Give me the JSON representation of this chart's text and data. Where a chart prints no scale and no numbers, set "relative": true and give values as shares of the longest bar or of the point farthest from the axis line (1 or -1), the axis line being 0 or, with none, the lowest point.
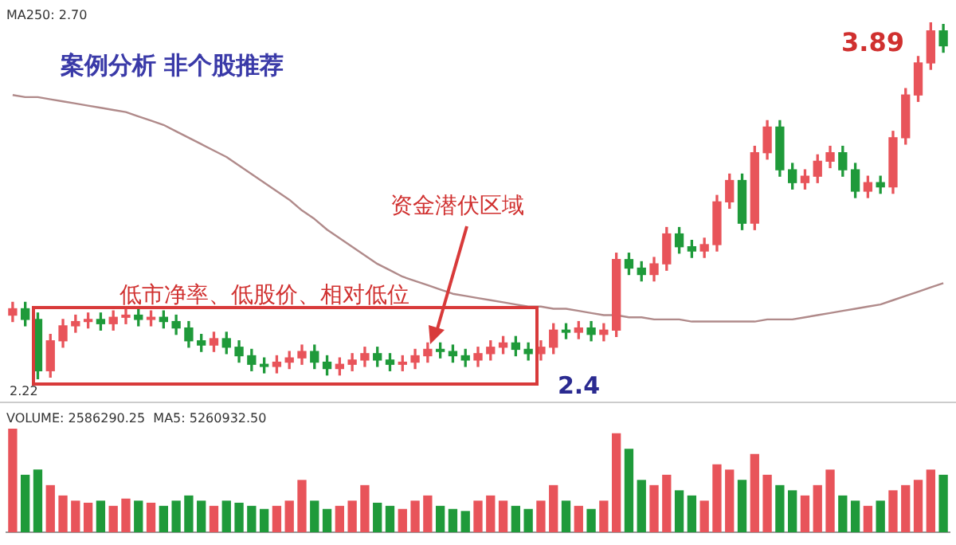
{
  "chart_data": [
    {
      "type": "candlestick",
      "categories": [
        null,
        null,
        null,
        null,
        null,
        null,
        null,
        null,
        null,
        null,
        null,
        null,
        null,
        null,
        null,
        null,
        null,
        null,
        null,
        null,
        null,
        null,
        null,
        null,
        null,
        null,
        null,
        null,
        null,
        null,
        null,
        null,
        null,
        null,
        null,
        null,
        null,
        null,
        null,
        null,
        null,
        null,
        null,
        null,
        null,
        null,
        null,
        null,
        null,
        null,
        null,
        null,
        null,
        null,
        null,
        null,
        null,
        null,
        null,
        null,
        null,
        null,
        null,
        null,
        null,
        null,
        null,
        null,
        null,
        null,
        null,
        null,
        null,
        null,
        null
      ],
      "ohlc": [
        [
          2.52,
          2.58,
          2.49,
          2.55
        ],
        [
          2.55,
          2.58,
          2.47,
          2.5
        ],
        [
          2.5,
          2.53,
          2.22,
          2.26
        ],
        [
          2.26,
          2.43,
          2.23,
          2.4
        ],
        [
          2.4,
          2.5,
          2.37,
          2.47
        ],
        [
          2.47,
          2.52,
          2.44,
          2.49
        ],
        [
          2.49,
          2.53,
          2.46,
          2.5
        ],
        [
          2.5,
          2.53,
          2.45,
          2.48
        ],
        [
          2.48,
          2.54,
          2.45,
          2.51
        ],
        [
          2.51,
          2.55,
          2.48,
          2.52
        ],
        [
          2.52,
          2.55,
          2.47,
          2.5
        ],
        [
          2.5,
          2.54,
          2.47,
          2.51
        ],
        [
          2.51,
          2.54,
          2.46,
          2.49
        ],
        [
          2.49,
          2.52,
          2.43,
          2.46
        ],
        [
          2.46,
          2.49,
          2.37,
          2.4
        ],
        [
          2.4,
          2.43,
          2.35,
          2.38
        ],
        [
          2.38,
          2.44,
          2.35,
          2.41
        ],
        [
          2.41,
          2.44,
          2.34,
          2.37
        ],
        [
          2.37,
          2.4,
          2.3,
          2.33
        ],
        [
          2.33,
          2.36,
          2.26,
          2.29
        ],
        [
          2.29,
          2.32,
          2.25,
          2.28
        ],
        [
          2.28,
          2.33,
          2.25,
          2.3
        ],
        [
          2.3,
          2.35,
          2.27,
          2.32
        ],
        [
          2.32,
          2.38,
          2.29,
          2.35
        ],
        [
          2.35,
          2.38,
          2.27,
          2.3
        ],
        [
          2.3,
          2.33,
          2.24,
          2.27
        ],
        [
          2.27,
          2.32,
          2.24,
          2.29
        ],
        [
          2.29,
          2.34,
          2.26,
          2.31
        ],
        [
          2.31,
          2.37,
          2.28,
          2.34
        ],
        [
          2.34,
          2.37,
          2.28,
          2.31
        ],
        [
          2.31,
          2.34,
          2.26,
          2.29
        ],
        [
          2.29,
          2.33,
          2.26,
          2.3
        ],
        [
          2.3,
          2.36,
          2.27,
          2.33
        ],
        [
          2.33,
          2.39,
          2.3,
          2.36
        ],
        [
          2.36,
          2.39,
          2.32,
          2.35
        ],
        [
          2.35,
          2.38,
          2.3,
          2.33
        ],
        [
          2.33,
          2.36,
          2.28,
          2.31
        ],
        [
          2.31,
          2.37,
          2.28,
          2.34
        ],
        [
          2.34,
          2.4,
          2.31,
          2.37
        ],
        [
          2.37,
          2.42,
          2.34,
          2.39
        ],
        [
          2.39,
          2.42,
          2.33,
          2.36
        ],
        [
          2.36,
          2.39,
          2.31,
          2.34
        ],
        [
          2.34,
          2.4,
          2.31,
          2.37
        ],
        [
          2.37,
          2.48,
          2.34,
          2.45
        ],
        [
          2.45,
          2.48,
          2.41,
          2.44
        ],
        [
          2.44,
          2.49,
          2.41,
          2.46
        ],
        [
          2.46,
          2.49,
          2.4,
          2.43
        ],
        [
          2.43,
          2.48,
          2.4,
          2.45
        ],
        [
          2.45,
          2.81,
          2.42,
          2.78
        ],
        [
          2.78,
          2.81,
          2.71,
          2.74
        ],
        [
          2.74,
          2.77,
          2.68,
          2.71
        ],
        [
          2.71,
          2.79,
          2.68,
          2.76
        ],
        [
          2.76,
          2.93,
          2.73,
          2.9
        ],
        [
          2.9,
          2.93,
          2.81,
          2.84
        ],
        [
          2.84,
          2.87,
          2.79,
          2.82
        ],
        [
          2.82,
          2.88,
          2.79,
          2.85
        ],
        [
          2.85,
          3.08,
          2.82,
          3.05
        ],
        [
          3.05,
          3.18,
          3.02,
          3.15
        ],
        [
          3.15,
          3.18,
          2.92,
          2.95
        ],
        [
          2.95,
          3.31,
          2.92,
          3.28
        ],
        [
          3.28,
          3.43,
          3.25,
          3.4
        ],
        [
          3.4,
          3.43,
          3.17,
          3.2
        ],
        [
          3.2,
          3.23,
          3.11,
          3.14
        ],
        [
          3.14,
          3.2,
          3.11,
          3.17
        ],
        [
          3.17,
          3.27,
          3.14,
          3.24
        ],
        [
          3.24,
          3.31,
          3.21,
          3.28
        ],
        [
          3.28,
          3.31,
          3.17,
          3.2
        ],
        [
          3.2,
          3.23,
          3.07,
          3.1
        ],
        [
          3.1,
          3.17,
          3.07,
          3.14
        ],
        [
          3.14,
          3.17,
          3.09,
          3.12
        ],
        [
          3.12,
          3.38,
          3.09,
          3.35
        ],
        [
          3.35,
          3.58,
          3.32,
          3.55
        ],
        [
          3.55,
          3.73,
          3.52,
          3.7
        ],
        [
          3.7,
          3.89,
          3.67,
          3.85
        ],
        [
          3.85,
          3.88,
          3.75,
          3.78
        ]
      ],
      "colors": [
        "#e8545a",
        "#1f9a3a",
        "#1f9a3a",
        "#e8545a",
        "#e8545a",
        "#e8545a",
        "#e8545a",
        "#1f9a3a",
        "#e8545a",
        "#e8545a",
        "#1f9a3a",
        "#e8545a",
        "#1f9a3a",
        "#1f9a3a",
        "#1f9a3a",
        "#1f9a3a",
        "#e8545a",
        "#1f9a3a",
        "#1f9a3a",
        "#1f9a3a",
        "#1f9a3a",
        "#e8545a",
        "#e8545a",
        "#e8545a",
        "#1f9a3a",
        "#1f9a3a",
        "#e8545a",
        "#e8545a",
        "#e8545a",
        "#1f9a3a",
        "#1f9a3a",
        "#e8545a",
        "#e8545a",
        "#e8545a",
        "#1f9a3a",
        "#1f9a3a",
        "#1f9a3a",
        "#e8545a",
        "#e8545a",
        "#e8545a",
        "#1f9a3a",
        "#1f9a3a",
        "#e8545a",
        "#e8545a",
        "#1f9a3a",
        "#e8545a",
        "#1f9a3a",
        "#e8545a",
        "#e8545a",
        "#1f9a3a",
        "#1f9a3a",
        "#e8545a",
        "#e8545a",
        "#1f9a3a",
        "#1f9a3a",
        "#e8545a",
        "#e8545a",
        "#e8545a",
        "#1f9a3a",
        "#e8545a",
        "#e8545a",
        "#1f9a3a",
        "#1f9a3a",
        "#e8545a",
        "#e8545a",
        "#e8545a",
        "#1f9a3a",
        "#1f9a3a",
        "#e8545a",
        "#1f9a3a",
        "#e8545a",
        "#e8545a",
        "#e8545a",
        "#e8545a",
        "#1f9a3a"
      ],
      "series": [
        {
          "type": "line",
          "color": "#b08a8a",
          "values": [
            3.55,
            3.54,
            3.54,
            3.53,
            3.52,
            3.51,
            3.5,
            3.49,
            3.48,
            3.47,
            3.45,
            3.43,
            3.41,
            3.38,
            3.35,
            3.32,
            3.29,
            3.26,
            3.22,
            3.18,
            3.14,
            3.1,
            3.06,
            3.01,
            2.97,
            2.92,
            2.88,
            2.84,
            2.8,
            2.76,
            2.73,
            2.7,
            2.68,
            2.66,
            2.64,
            2.62,
            2.61,
            2.6,
            2.59,
            2.58,
            2.57,
            2.56,
            2.56,
            2.55,
            2.55,
            2.54,
            2.53,
            2.52,
            2.52,
            2.51,
            2.51,
            2.5,
            2.5,
            2.5,
            2.49,
            2.49,
            2.49,
            2.49,
            2.49,
            2.49,
            2.5,
            2.5,
            2.5,
            2.51,
            2.52,
            2.53,
            2.54,
            2.55,
            2.56,
            2.57,
            2.59,
            2.61,
            2.63,
            2.65,
            2.67
          ]
        }
      ],
      "annotations": [
        "案例分析 非个股推荐",
        "低市净率、低股价、相对低位",
        "资金潜伏区域",
        "3.89",
        "2.4",
        "2.22",
        "MA250: 2.70"
      ]
    },
    {
      "type": "bar",
      "relative": true,
      "categories": [
        null,
        null,
        null,
        null,
        null,
        null,
        null,
        null,
        null,
        null,
        null,
        null,
        null,
        null,
        null,
        null,
        null,
        null,
        null,
        null,
        null,
        null,
        null,
        null,
        null,
        null,
        null,
        null,
        null,
        null,
        null,
        null,
        null,
        null,
        null,
        null,
        null,
        null,
        null,
        null,
        null,
        null,
        null,
        null,
        null,
        null,
        null,
        null,
        null,
        null,
        null,
        null,
        null,
        null,
        null,
        null,
        null,
        null,
        null,
        null,
        null,
        null,
        null,
        null,
        null,
        null,
        null,
        null,
        null,
        null,
        null,
        null,
        null,
        null,
        null
      ],
      "values": [
        1.0,
        0.55,
        0.6,
        0.45,
        0.35,
        0.3,
        0.28,
        0.3,
        0.25,
        0.32,
        0.3,
        0.28,
        0.25,
        0.3,
        0.35,
        0.3,
        0.25,
        0.3,
        0.28,
        0.25,
        0.22,
        0.25,
        0.3,
        0.5,
        0.3,
        0.22,
        0.25,
        0.3,
        0.45,
        0.28,
        0.25,
        0.22,
        0.3,
        0.35,
        0.25,
        0.22,
        0.2,
        0.3,
        0.35,
        0.3,
        0.25,
        0.22,
        0.3,
        0.45,
        0.3,
        0.25,
        0.22,
        0.3,
        0.95,
        0.8,
        0.5,
        0.45,
        0.55,
        0.4,
        0.35,
        0.3,
        0.65,
        0.6,
        0.5,
        0.75,
        0.55,
        0.45,
        0.4,
        0.35,
        0.45,
        0.6,
        0.35,
        0.3,
        0.25,
        0.3,
        0.4,
        0.45,
        0.5,
        0.6,
        0.55
      ],
      "colors": [
        "#e8545a",
        "#1f9a3a",
        "#1f9a3a",
        "#e8545a",
        "#e8545a",
        "#e8545a",
        "#e8545a",
        "#1f9a3a",
        "#e8545a",
        "#e8545a",
        "#1f9a3a",
        "#e8545a",
        "#1f9a3a",
        "#1f9a3a",
        "#1f9a3a",
        "#1f9a3a",
        "#e8545a",
        "#1f9a3a",
        "#1f9a3a",
        "#1f9a3a",
        "#1f9a3a",
        "#e8545a",
        "#e8545a",
        "#e8545a",
        "#1f9a3a",
        "#1f9a3a",
        "#e8545a",
        "#e8545a",
        "#e8545a",
        "#1f9a3a",
        "#1f9a3a",
        "#e8545a",
        "#e8545a",
        "#e8545a",
        "#1f9a3a",
        "#1f9a3a",
        "#1f9a3a",
        "#e8545a",
        "#e8545a",
        "#e8545a",
        "#1f9a3a",
        "#1f9a3a",
        "#e8545a",
        "#e8545a",
        "#1f9a3a",
        "#e8545a",
        "#1f9a3a",
        "#e8545a",
        "#e8545a",
        "#1f9a3a",
        "#1f9a3a",
        "#e8545a",
        "#e8545a",
        "#1f9a3a",
        "#1f9a3a",
        "#e8545a",
        "#e8545a",
        "#e8545a",
        "#1f9a3a",
        "#e8545a",
        "#e8545a",
        "#1f9a3a",
        "#1f9a3a",
        "#e8545a",
        "#e8545a",
        "#e8545a",
        "#1f9a3a",
        "#1f9a3a",
        "#e8545a",
        "#1f9a3a",
        "#e8545a",
        "#e8545a",
        "#e8545a",
        "#e8545a",
        "#1f9a3a"
      ],
      "annotations": [
        "VOLUME: 2586290.25  MA5: 5260932.50"
      ]
    }
  ]
}
